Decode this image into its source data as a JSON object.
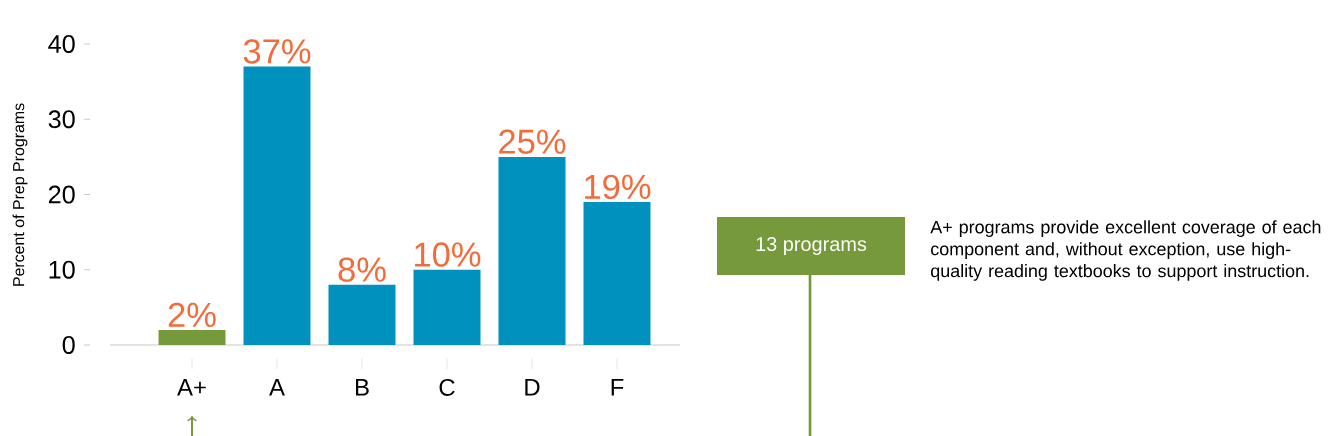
{
  "chart_data": {
    "type": "bar",
    "ylabel": "Percent of Prep Programs",
    "categories": [
      "A+",
      "A",
      "B",
      "C",
      "D",
      "F"
    ],
    "values": [
      2,
      37,
      8,
      10,
      25,
      19
    ],
    "colors": [
      "#76993b",
      "#0091be",
      "#0091be",
      "#0091be",
      "#0091be",
      "#0091be"
    ],
    "value_labels": [
      "2%",
      "37%",
      "8%",
      "10%",
      "25%",
      "19%"
    ],
    "ylim": [
      0,
      40
    ],
    "yticks": [
      0,
      10,
      20,
      30,
      40
    ],
    "annotations": [
      "13 programs",
      "A+ programs provide excellent coverage of each component and, without exception, use high-quality reading textbooks to support instruction."
    ]
  }
}
